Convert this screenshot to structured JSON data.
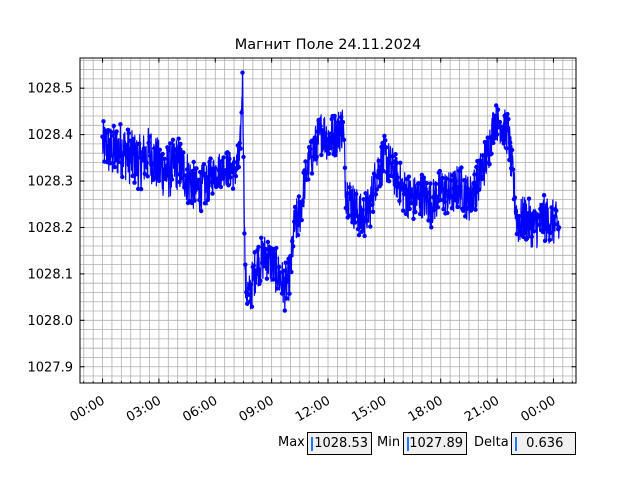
{
  "chart_data": {
    "type": "line",
    "title": "Магнит Поле 24.11.2024",
    "xlabel": "",
    "ylabel": "",
    "x_unit": "hours since 00:00",
    "xlim": [
      -1.2,
      25.2
    ],
    "ylim": [
      1027.865,
      1028.565
    ],
    "x_ticks": [
      {
        "value": 0,
        "label": "00:00"
      },
      {
        "value": 3,
        "label": "03:00"
      },
      {
        "value": 6,
        "label": "06:00"
      },
      {
        "value": 9,
        "label": "09:00"
      },
      {
        "value": 12,
        "label": "12:00"
      },
      {
        "value": 15,
        "label": "15:00"
      },
      {
        "value": 18,
        "label": "18:00"
      },
      {
        "value": 21,
        "label": "21:00"
      },
      {
        "value": 24,
        "label": "00:00"
      }
    ],
    "y_ticks": [
      {
        "value": 1027.9,
        "label": "1027.9"
      },
      {
        "value": 1028.0,
        "label": "1028.0"
      },
      {
        "value": 1028.1,
        "label": "1028.1"
      },
      {
        "value": 1028.2,
        "label": "1028.2"
      },
      {
        "value": 1028.3,
        "label": "1028.3"
      },
      {
        "value": 1028.4,
        "label": "1028.4"
      },
      {
        "value": 1028.5,
        "label": "1028.5"
      }
    ],
    "grid": true,
    "series": [
      {
        "color": "#0000ff",
        "marker": "circle",
        "x": [
          0.0,
          0.5,
          1.0,
          1.5,
          2.0,
          2.5,
          3.0,
          3.5,
          4.0,
          4.5,
          5.0,
          5.5,
          6.0,
          6.5,
          7.0,
          7.3,
          7.45,
          7.6,
          7.8,
          8.2,
          8.7,
          9.2,
          9.7,
          10.0,
          10.2,
          10.5,
          10.9,
          11.3,
          11.7,
          12.0,
          12.4,
          12.8,
          12.95,
          13.3,
          13.8,
          14.2,
          14.6,
          15.0,
          15.5,
          16.0,
          16.5,
          17.0,
          17.5,
          18.0,
          18.5,
          19.0,
          19.5,
          20.0,
          20.5,
          20.85,
          21.2,
          21.6,
          22.0,
          22.1,
          22.5,
          23.0,
          23.5,
          24.0,
          24.3
        ],
        "y": [
          1028.38,
          1028.36,
          1028.37,
          1028.35,
          1028.34,
          1028.36,
          1028.33,
          1028.32,
          1028.34,
          1028.31,
          1028.28,
          1028.29,
          1028.32,
          1028.33,
          1028.32,
          1028.34,
          1028.52,
          1028.08,
          1028.05,
          1028.12,
          1028.14,
          1028.11,
          1028.07,
          1028.1,
          1028.2,
          1028.23,
          1028.33,
          1028.37,
          1028.41,
          1028.39,
          1028.4,
          1028.42,
          1028.28,
          1028.25,
          1028.22,
          1028.24,
          1028.32,
          1028.35,
          1028.32,
          1028.28,
          1028.26,
          1028.27,
          1028.25,
          1028.28,
          1028.27,
          1028.29,
          1028.26,
          1028.3,
          1028.36,
          1028.43,
          1028.42,
          1028.4,
          1028.24,
          1028.21,
          1028.22,
          1028.2,
          1028.22,
          1028.21,
          1028.2
        ],
        "band": [
          0.05,
          0.06,
          0.06,
          0.06,
          0.06,
          0.06,
          0.06,
          0.06,
          0.06,
          0.06,
          0.05,
          0.05,
          0.04,
          0.04,
          0.04,
          0.05,
          0.02,
          0.05,
          0.05,
          0.05,
          0.05,
          0.05,
          0.05,
          0.05,
          0.05,
          0.05,
          0.04,
          0.05,
          0.05,
          0.05,
          0.05,
          0.05,
          0.05,
          0.05,
          0.05,
          0.05,
          0.05,
          0.05,
          0.05,
          0.05,
          0.05,
          0.05,
          0.05,
          0.05,
          0.05,
          0.05,
          0.05,
          0.05,
          0.05,
          0.04,
          0.04,
          0.05,
          0.05,
          0.05,
          0.05,
          0.05,
          0.05,
          0.05,
          0.05
        ]
      }
    ]
  },
  "readouts": {
    "max_label": "Max",
    "max_value": "1028.53",
    "min_label": "Min",
    "min_value": "1027.89",
    "delta_label": "Delta",
    "delta_value": " 0.636"
  }
}
